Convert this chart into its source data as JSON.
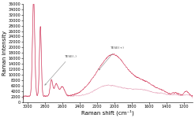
{
  "xlabel": "Raman shift (cm⁻¹)",
  "ylabel": "Raman intensity",
  "xlim": [
    3050,
    1100
  ],
  "ylim": [
    0,
    36000
  ],
  "yticks": [
    0,
    2000,
    4000,
    6000,
    8000,
    10000,
    12000,
    14000,
    16000,
    18000,
    20000,
    22000,
    24000,
    26000,
    28000,
    30000,
    32000,
    34000,
    36000
  ],
  "xticks": [
    3000,
    2800,
    2600,
    2400,
    2200,
    2000,
    1800,
    1600,
    1400,
    1200
  ],
  "color_tese_pos": "#d44060",
  "color_tese_neg": "#e8aabf",
  "label_tese_neg": "TESE(-)",
  "label_tese_pos": "TESE(+)",
  "background_color": "#ffffff",
  "font_size_axis": 5,
  "font_size_tick": 3.5
}
